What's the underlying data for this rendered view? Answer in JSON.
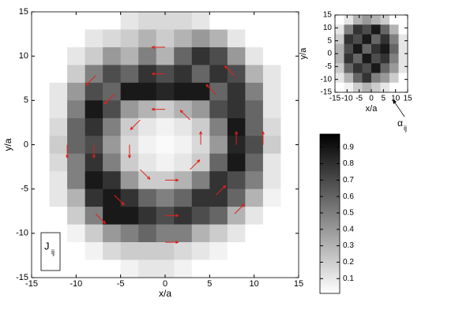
{
  "chart_data": [
    {
      "type": "heatmap",
      "xlabel": "x/a",
      "ylabel": "y/a",
      "xlim": [
        -15,
        15
      ],
      "ylim": [
        -15,
        15
      ],
      "xticks": [
        -15,
        -10,
        -5,
        0,
        5,
        10,
        15
      ],
      "yticks": [
        -15,
        -10,
        -5,
        0,
        5,
        10,
        15
      ],
      "matrix": [
        [
          0,
          0,
          0,
          0,
          0,
          0.1,
          0.15,
          0.15,
          0.15,
          0.1,
          0,
          0,
          0,
          0,
          0
        ],
        [
          0,
          0,
          0,
          0.1,
          0.15,
          0.2,
          0.3,
          0.2,
          0.3,
          0.4,
          0.3,
          0.1,
          0,
          0,
          0
        ],
        [
          0,
          0,
          0.1,
          0.2,
          0.4,
          0.3,
          0.5,
          0.3,
          0.6,
          0.8,
          0.7,
          0.4,
          0.1,
          0,
          0
        ],
        [
          0,
          0,
          0.2,
          0.5,
          0.7,
          0.6,
          0.8,
          0.7,
          0.8,
          0.6,
          0.8,
          0.7,
          0.3,
          0.1,
          0
        ],
        [
          0,
          0.1,
          0.4,
          0.7,
          0.6,
          0.9,
          0.9,
          0.85,
          0.9,
          0.9,
          0.6,
          0.8,
          0.5,
          0.1,
          0
        ],
        [
          0,
          0.1,
          0.5,
          0.9,
          0.7,
          0.4,
          0.3,
          0.2,
          0.3,
          0.4,
          0.7,
          0.8,
          0.6,
          0.1,
          0
        ],
        [
          0,
          0.15,
          0.6,
          0.8,
          0.5,
          0.2,
          0.1,
          0.05,
          0.1,
          0.2,
          0.5,
          0.9,
          0.6,
          0.15,
          0
        ],
        [
          0,
          0.2,
          0.6,
          0.7,
          0.4,
          0.15,
          0.05,
          0.02,
          0.05,
          0.15,
          0.4,
          0.85,
          0.7,
          0.2,
          0
        ],
        [
          0,
          0.15,
          0.5,
          0.8,
          0.5,
          0.2,
          0.1,
          0.05,
          0.1,
          0.2,
          0.6,
          0.9,
          0.6,
          0.1,
          0
        ],
        [
          0,
          0.1,
          0.5,
          0.9,
          0.8,
          0.4,
          0.2,
          0.2,
          0.3,
          0.5,
          0.8,
          0.7,
          0.5,
          0.1,
          0
        ],
        [
          0,
          0.1,
          0.3,
          0.8,
          0.9,
          0.8,
          0.6,
          0.5,
          0.6,
          0.8,
          0.8,
          0.6,
          0.3,
          0.05,
          0
        ],
        [
          0,
          0,
          0.2,
          0.5,
          0.9,
          0.9,
          0.8,
          0.7,
          0.8,
          0.7,
          0.6,
          0.3,
          0.1,
          0,
          0
        ],
        [
          0,
          0,
          0.05,
          0.2,
          0.4,
          0.5,
          0.6,
          0.5,
          0.5,
          0.3,
          0.2,
          0.1,
          0,
          0,
          0
        ],
        [
          0,
          0,
          0,
          0.05,
          0.15,
          0.2,
          0.2,
          0.2,
          0.15,
          0.1,
          0.05,
          0,
          0,
          0,
          0
        ],
        [
          0,
          0,
          0,
          0,
          0,
          0.05,
          0.1,
          0.1,
          0.05,
          0,
          0,
          0,
          0,
          0,
          0
        ]
      ],
      "arrows": {
        "color": "#e0201a",
        "x": [
          4,
          2.8,
          0,
          -2.8,
          -4,
          -2.8,
          0,
          2.8,
          8,
          5.7,
          0,
          -5.7,
          -8,
          -5.7,
          0,
          5.7,
          11,
          7.8,
          0,
          -7.8,
          -11,
          -7.8,
          0,
          7.8
        ],
        "y": [
          0,
          2.8,
          4,
          2.8,
          0,
          -2.8,
          -4,
          -2.8,
          0,
          5.7,
          8,
          5.7,
          0,
          -5.7,
          -8,
          -5.7,
          0,
          7.8,
          11,
          7.8,
          0,
          -7.8,
          -11,
          -7.8
        ],
        "u": [
          0,
          -1.1,
          -1.5,
          -1.1,
          0,
          1.1,
          1.5,
          1.1,
          0,
          -1.1,
          -1.5,
          -1.1,
          0,
          1.1,
          1.5,
          1.1,
          0,
          -1.1,
          -1.5,
          -1.1,
          0,
          1.1,
          1.5,
          1.1
        ],
        "v": [
          1.5,
          1.1,
          0,
          -1.1,
          -1.5,
          -1.1,
          0,
          1.1,
          1.5,
          1.1,
          0,
          -1.1,
          -1.5,
          -1.1,
          0,
          1.1,
          1.5,
          1.1,
          0,
          -1.1,
          -1.5,
          -1.1,
          0,
          1.1
        ]
      },
      "label": {
        "text": "J",
        "sub": "ij"
      }
    },
    {
      "type": "heatmap",
      "xlabel": "x/a",
      "ylabel": "y/a",
      "xlim": [
        -15,
        15
      ],
      "ylim": [
        -15,
        15
      ],
      "xticks": [
        -15,
        -10,
        -5,
        0,
        5,
        10,
        15
      ],
      "yticks": [
        -15,
        -10,
        -5,
        0,
        5,
        10,
        15
      ],
      "matrix": [
        [
          0,
          0.1,
          0.3,
          0.4,
          0.3,
          0.2,
          0,
          0
        ],
        [
          0.1,
          0.5,
          0.8,
          0.7,
          0.9,
          0.6,
          0.3,
          0
        ],
        [
          0.2,
          0.8,
          0.7,
          0.9,
          0.6,
          0.8,
          0.5,
          0.1
        ],
        [
          0.3,
          0.7,
          0.9,
          0.6,
          0.8,
          0.9,
          0.6,
          0.1
        ],
        [
          0.3,
          0.8,
          0.6,
          0.9,
          0.7,
          0.8,
          0.5,
          0.1
        ],
        [
          0.2,
          0.6,
          0.8,
          0.7,
          0.9,
          0.6,
          0.4,
          0.1
        ],
        [
          0.1,
          0.3,
          0.6,
          0.8,
          0.5,
          0.4,
          0.2,
          0
        ],
        [
          0,
          0.05,
          0.2,
          0.3,
          0.2,
          0.1,
          0,
          0
        ]
      ],
      "label": {
        "text": "α",
        "sub": "ij"
      }
    },
    {
      "type": "colorbar",
      "ylim": [
        0.01,
        0.98
      ],
      "yticks": [
        0.1,
        0.2,
        0.3,
        0.4,
        0.5,
        0.6,
        0.7,
        0.8,
        0.9
      ]
    }
  ]
}
